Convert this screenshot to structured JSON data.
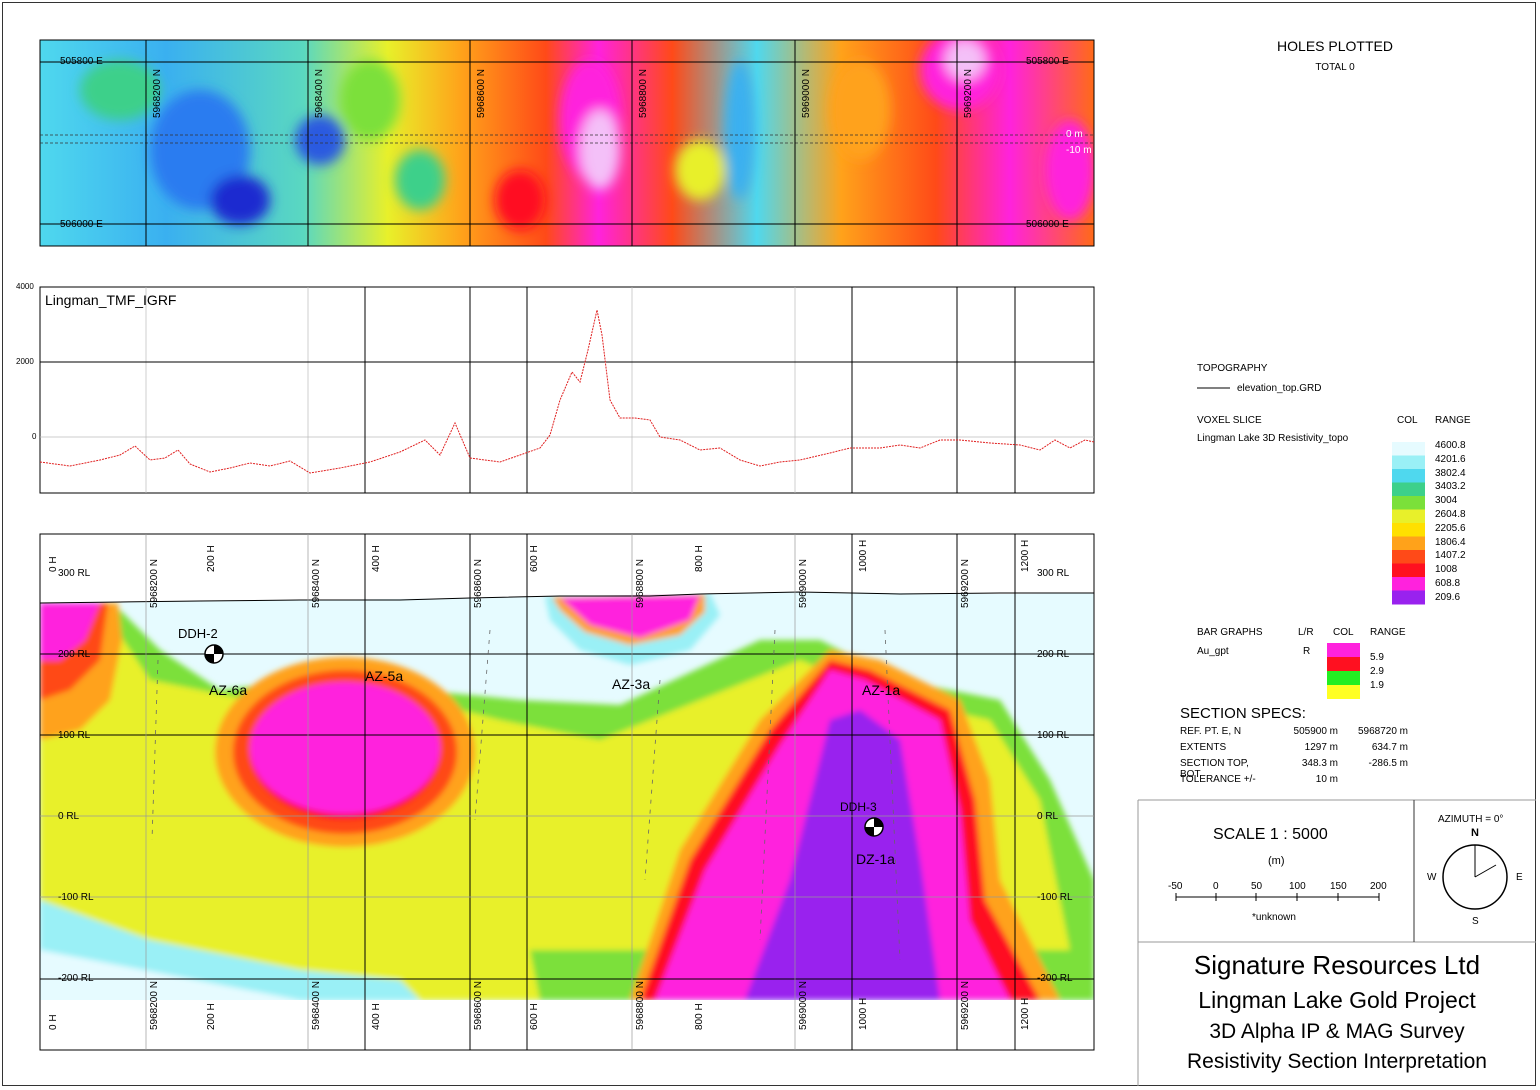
{
  "map_panel": {
    "easting_top": "505800 E",
    "easting_bottom": "506000 E",
    "northings": [
      "5968200 N",
      "5968400 N",
      "5968600 N",
      "5968800 N",
      "5969000 N",
      "5969200 N"
    ],
    "depth_marks": [
      "0 m",
      "-10 m"
    ]
  },
  "profile_panel": {
    "title": "Lingman_TMF_IGRF",
    "y_ticks": [
      "4000",
      "2000",
      "0"
    ]
  },
  "section_panel": {
    "rl_left": [
      "300 RL",
      "200 RL",
      "100 RL",
      "0 RL",
      "-100 RL",
      "-200 RL"
    ],
    "rl_right": [
      "300 RL",
      "200 RL",
      "100 RL",
      "0 RL",
      "-100 RL",
      "-200 RL"
    ],
    "h_labels": [
      "0 H",
      "200 H",
      "400 H",
      "600 H",
      "800 H",
      "1000 H",
      "1200 H"
    ],
    "n_labels": [
      "5968200 N",
      "5968400 N",
      "5968600 N",
      "5968800 N",
      "5969000 N",
      "5969200 N"
    ],
    "holes": [
      "DDH-2",
      "DDH-3"
    ],
    "zones": [
      "AZ-6a",
      "AZ-5a",
      "AZ-3a",
      "AZ-1a",
      "DZ-1a"
    ]
  },
  "holes_plotted": {
    "title": "HOLES PLOTTED",
    "total": "TOTAL 0"
  },
  "topography": {
    "title": "TOPOGRAPHY",
    "item": "elevation_top.GRD"
  },
  "voxel": {
    "title": "VOXEL SLICE",
    "name": "Lingman Lake 3D Resistivity_topo",
    "col_header": "COL",
    "range_header": "RANGE",
    "ranges": [
      "4600.8",
      "4201.6",
      "3802.4",
      "3403.2",
      "3004",
      "2604.8",
      "2205.6",
      "1806.4",
      "1407.2",
      "1008",
      "608.8",
      "209.6"
    ],
    "colors": [
      "#e6fbff",
      "#9af0f6",
      "#4fd8ee",
      "#3dd08a",
      "#7be03a",
      "#e8f02a",
      "#ffe000",
      "#ffa21a",
      "#ff4a18",
      "#ff1020",
      "#ff22dd",
      "#9922ee"
    ]
  },
  "bar_graphs": {
    "title": "BAR GRAPHS",
    "lr_header": "L/R",
    "col_header": "COL",
    "range_header": "RANGE",
    "item": "Au_gpt",
    "side": "R",
    "ranges": [
      "5.9",
      "2.9",
      "1.9"
    ],
    "colors": [
      "#ff22dd",
      "#ff1020",
      "#22ee22",
      "#ffff22"
    ]
  },
  "section_specs": {
    "title": "SECTION  SPECS:",
    "rows": [
      {
        "label": "REF. PT.  E, N",
        "v1": "505900 m",
        "v2": "5968720 m"
      },
      {
        "label": "EXTENTS",
        "v1": "1297 m",
        "v2": "634.7 m"
      },
      {
        "label": "SECTION TOP, BOT",
        "v1": "348.3 m",
        "v2": "-286.5 m"
      },
      {
        "label": "TOLERANCE  +/-",
        "v1": "10 m",
        "v2": ""
      }
    ]
  },
  "scale": {
    "title": "SCALE  1 : 5000",
    "unit": "(m)",
    "ticks": [
      "-50",
      "0",
      "50",
      "100",
      "150",
      "200"
    ],
    "note": "*unknown"
  },
  "compass": {
    "azimuth": "AZIMUTH = 0°",
    "n": "N",
    "s": "S",
    "e": "E",
    "w": "W"
  },
  "title_block": {
    "company": "Signature Resources Ltd",
    "project": "Lingman Lake Gold Project",
    "survey": "3D Alpha IP & MAG Survey",
    "section": "Resistivity Section Interpretation"
  }
}
